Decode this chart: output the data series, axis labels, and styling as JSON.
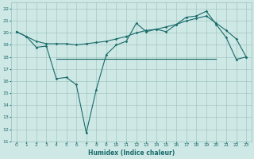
{
  "title": "",
  "xlabel": "Humidex (Indice chaleur)",
  "ylabel": "",
  "bg_color": "#cde8e5",
  "grid_color": "#9bbfbb",
  "line_color": "#1a6b6b",
  "xlim": [
    -0.5,
    23.5
  ],
  "ylim": [
    11,
    22.5
  ],
  "yticks": [
    11,
    12,
    13,
    14,
    15,
    16,
    17,
    18,
    19,
    20,
    21,
    22
  ],
  "xticks": [
    0,
    1,
    2,
    3,
    4,
    5,
    6,
    7,
    8,
    9,
    10,
    11,
    12,
    13,
    14,
    15,
    16,
    17,
    18,
    19,
    20,
    21,
    22,
    23
  ],
  "line1_x": [
    0,
    1,
    2,
    3,
    4,
    5,
    6,
    7,
    8,
    9,
    10,
    11,
    12,
    13,
    14,
    15,
    16,
    17,
    18,
    19,
    20,
    21,
    22,
    23
  ],
  "line1_y": [
    20.1,
    19.7,
    18.8,
    18.9,
    16.2,
    16.3,
    15.7,
    11.7,
    15.3,
    18.2,
    19.0,
    19.3,
    20.8,
    20.1,
    20.3,
    20.1,
    20.7,
    21.3,
    21.4,
    21.8,
    20.7,
    19.6,
    17.8,
    18.0
  ],
  "line2_x": [
    0,
    1,
    2,
    3,
    4,
    5,
    6,
    7,
    8,
    9,
    10,
    11,
    12,
    13,
    14,
    15,
    16,
    17,
    18,
    19,
    20,
    21,
    22,
    23
  ],
  "line2_y": [
    20.1,
    19.7,
    19.3,
    19.1,
    19.1,
    19.1,
    19.0,
    19.1,
    19.2,
    19.3,
    19.5,
    19.7,
    20.0,
    20.2,
    20.3,
    20.5,
    20.7,
    21.0,
    21.2,
    21.4,
    20.8,
    20.2,
    19.5,
    18.0
  ],
  "hline_x": [
    4,
    20
  ],
  "hline_y": [
    17.85,
    17.85
  ]
}
